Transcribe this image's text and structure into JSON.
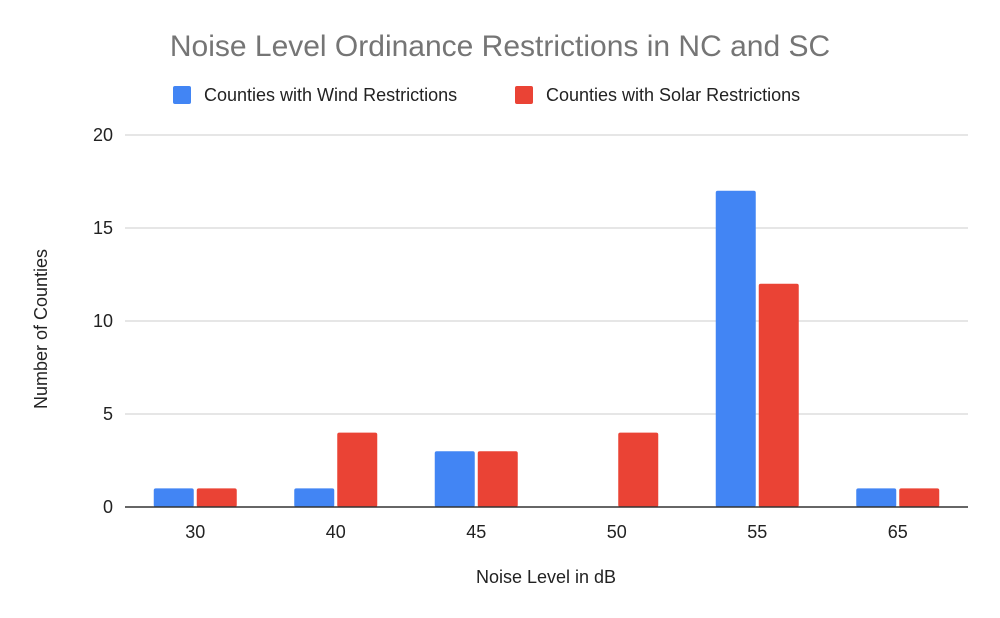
{
  "chart_data": {
    "type": "bar",
    "title": "Noise Level Ordinance Restrictions in NC and SC",
    "xlabel": "Noise Level in dB",
    "ylabel": "Number of Counties",
    "categories": [
      "30",
      "40",
      "45",
      "50",
      "55",
      "65"
    ],
    "series": [
      {
        "name": "Counties with Wind Restrictions",
        "color": "#4285F4",
        "values": [
          1,
          1,
          3,
          0,
          17,
          1
        ]
      },
      {
        "name": "Counties with Solar Restrictions",
        "color": "#EA4335",
        "values": [
          1,
          4,
          3,
          4,
          12,
          1
        ]
      }
    ],
    "ylim": [
      0,
      20
    ],
    "yticks": [
      "0",
      "5",
      "10",
      "15",
      "20"
    ],
    "grid": true,
    "legend_position": "top-center"
  }
}
